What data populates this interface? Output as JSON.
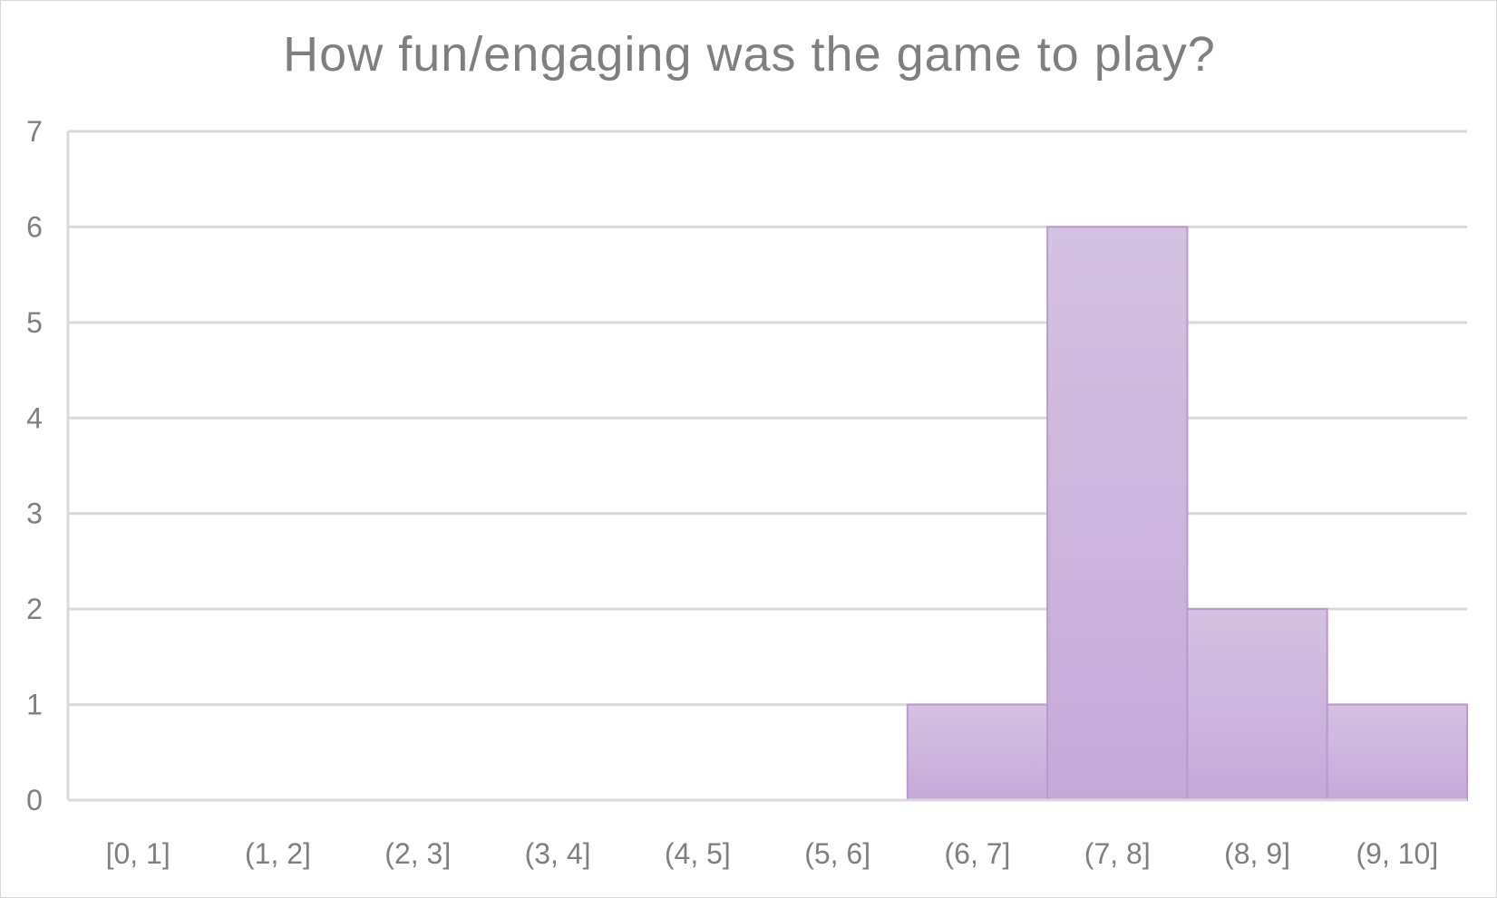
{
  "chart_data": {
    "type": "bar",
    "title": "How fun/engaging was the game to play?",
    "xlabel": "",
    "ylabel": "",
    "categories": [
      "[0, 1]",
      "(1, 2]",
      "(2, 3]",
      "(3, 4]",
      "(4, 5]",
      "(5, 6]",
      "(6, 7]",
      "(7, 8]",
      "(8, 9]",
      "(9, 10]"
    ],
    "values": [
      0,
      0,
      0,
      0,
      0,
      0,
      1,
      6,
      2,
      1
    ],
    "ylim": [
      0,
      7
    ],
    "yticks": [
      0,
      1,
      2,
      3,
      4,
      5,
      6,
      7
    ],
    "grid": true,
    "legend": "none",
    "colors": {
      "bar_top": "#d4c2e2",
      "bar_bottom": "#c5a9d8",
      "bar_edge": "#b89acf",
      "grid": "#d9d9d9",
      "text": "#7f7f7f"
    }
  }
}
